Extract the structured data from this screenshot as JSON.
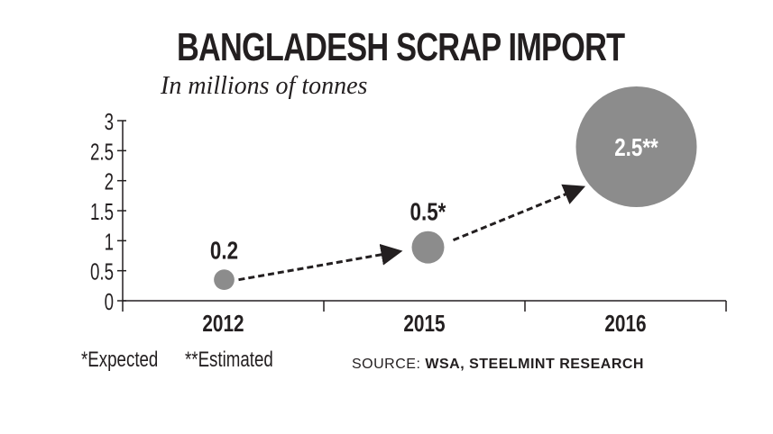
{
  "chart_data": {
    "type": "bubble",
    "title": "BANGLADESH SCRAP IMPORT",
    "subtitle": "In millions of tonnes",
    "categories": [
      "2012",
      "2015",
      "2016"
    ],
    "values": [
      0.2,
      0.5,
      2.5
    ],
    "labels": [
      "0.2",
      "0.5*",
      "2.5**"
    ],
    "ylim": [
      0,
      3
    ],
    "yticks": [
      "0",
      "0.5",
      "1",
      "1.5",
      "2",
      "2.5",
      "3"
    ],
    "grid": false,
    "bubble_color": "#8c8c8c"
  },
  "footnotes": {
    "expected": "*Expected",
    "estimated": "**Estimated"
  },
  "source": {
    "label": "SOURCE:",
    "value": "WSA, STEELMINT RESEARCH"
  }
}
